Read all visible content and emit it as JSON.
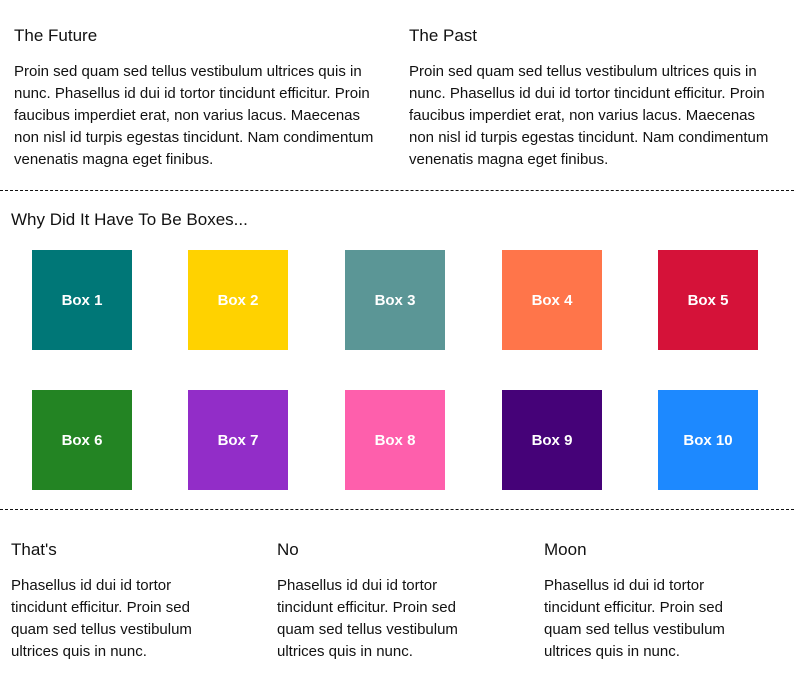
{
  "top_articles": [
    {
      "title": "The Future",
      "body": "Proin sed quam sed tellus vestibulum ultrices quis in nunc. Phasellus id dui id tortor tincidunt efficitur. Proin faucibus imperdiet erat, non varius lacus. Maecenas non nisl id turpis egestas tincidunt. Nam condimentum venenatis magna eget finibus."
    },
    {
      "title": "The Past",
      "body": "Proin sed quam sed tellus vestibulum ultrices quis in nunc. Phasellus id dui id tortor tincidunt efficitur. Proin faucibus imperdiet erat, non varius lacus. Maecenas non nisl id turpis egestas tincidunt. Nam condimentum venenatis magna eget finibus."
    }
  ],
  "boxes_section": {
    "title": "Why Did It Have To Be Boxes...",
    "boxes": [
      {
        "label": "Box 1",
        "color": "#007777"
      },
      {
        "label": "Box 2",
        "color": "#ffd200"
      },
      {
        "label": "Box 3",
        "color": "#5b9696"
      },
      {
        "label": "Box 4",
        "color": "#ff754a"
      },
      {
        "label": "Box 5",
        "color": "#d51239"
      },
      {
        "label": "Box 6",
        "color": "#238423"
      },
      {
        "label": "Box 7",
        "color": "#922dc8"
      },
      {
        "label": "Box 8",
        "color": "#fe5fac"
      },
      {
        "label": "Box 9",
        "color": "#450278"
      },
      {
        "label": "Box 10",
        "color": "#1d89ff"
      }
    ]
  },
  "bottom_cards": [
    {
      "title": "That's",
      "body": "Phasellus id dui id tortor tincidunt efficitur. Proin sed quam sed tellus vestibulum ultrices quis in nunc."
    },
    {
      "title": "No",
      "body": "Phasellus id dui id tortor tincidunt efficitur. Proin sed quam sed tellus vestibulum ultrices quis in nunc."
    },
    {
      "title": "Moon",
      "body": "Phasellus id dui id tortor tincidunt efficitur. Proin sed quam sed tellus vestibulum ultrices quis in nunc."
    }
  ]
}
